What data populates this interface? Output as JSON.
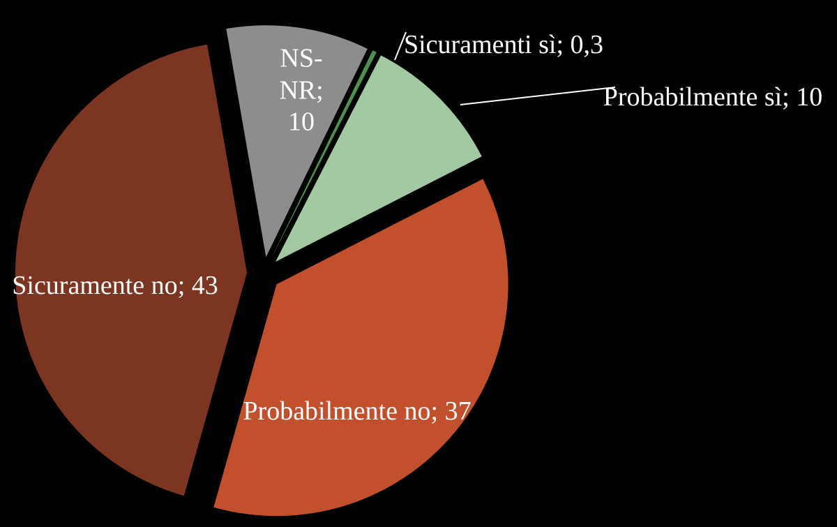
{
  "chart_data": {
    "type": "pie",
    "categories": [
      "Sicuramenti sì",
      "Probabilmente sì",
      "Probabilmente no",
      "Sicuramente no",
      "NS-NR"
    ],
    "values": [
      0.3,
      10,
      37,
      43,
      10
    ],
    "value_labels": [
      "0,3",
      "10",
      "37",
      "43",
      "10"
    ],
    "label_separator": "; ",
    "colors": [
      "#4f8f4f",
      "#a2c9a2",
      "#c2502d",
      "#7c3520",
      "#8d8d8d"
    ]
  }
}
